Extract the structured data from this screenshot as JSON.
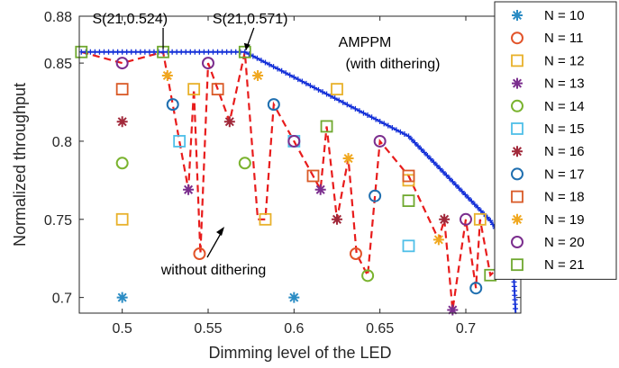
{
  "chart_data": {
    "type": "scatter",
    "xlabel": "Dimming level of the LED",
    "ylabel": "Normalized throughput",
    "xlim": [
      0.475,
      0.732
    ],
    "ylim": [
      0.69,
      0.88
    ],
    "xticks": [
      0.5,
      0.55,
      0.6,
      0.65,
      0.7
    ],
    "xtick_labels": [
      "0.5",
      "0.55",
      "0.6",
      "0.65",
      "0.7"
    ],
    "yticks": [
      0.7,
      0.75,
      0.8,
      0.85,
      0.88
    ],
    "ytick_labels": [
      "0.7",
      "0.75",
      "0.8",
      "0.85",
      "0.88"
    ],
    "grid": false,
    "legend_position": "right",
    "annotations": [
      {
        "text": "S(21,0.524)",
        "x": 0.524,
        "y": 0.859
      },
      {
        "text": "S(21,0.571)",
        "x": 0.571,
        "y": 0.859
      },
      {
        "text": "AMPPM",
        "x": 0.592,
        "y": 0.858
      },
      {
        "text": "(with dithering)",
        "x": 0.625,
        "y": 0.846
      },
      {
        "text": "without dithering",
        "x": 0.544,
        "y": 0.728
      }
    ],
    "series": [
      {
        "name": "N = 10",
        "marker": "asterisk",
        "color": "#2b8cc4",
        "points": [
          [
            0.5,
            0.7
          ],
          [
            0.6,
            0.7
          ]
        ]
      },
      {
        "name": "N = 11",
        "marker": "circle",
        "color": "#e2542a",
        "points": [
          [
            0.545,
            0.728
          ],
          [
            0.636,
            0.728
          ],
          [
            0.727,
            0.728
          ]
        ]
      },
      {
        "name": "N = 12",
        "marker": "square",
        "color": "#e8b12a",
        "points": [
          [
            0.5,
            0.75
          ],
          [
            0.5417,
            0.8333
          ],
          [
            0.5833,
            0.75
          ],
          [
            0.625,
            0.8333
          ],
          [
            0.6667,
            0.775
          ],
          [
            0.7083,
            0.75
          ]
        ]
      },
      {
        "name": "N = 13",
        "marker": "asterisk",
        "color": "#7b2e8e",
        "points": [
          [
            0.5385,
            0.769
          ],
          [
            0.6154,
            0.769
          ],
          [
            0.6923,
            0.692
          ]
        ]
      },
      {
        "name": "N = 14",
        "marker": "circle",
        "color": "#7ab32e",
        "points": [
          [
            0.5,
            0.786
          ],
          [
            0.5714,
            0.786
          ],
          [
            0.6429,
            0.714
          ]
        ]
      },
      {
        "name": "N = 15",
        "marker": "square",
        "color": "#4fbfe8",
        "points": [
          [
            0.5333,
            0.8
          ],
          [
            0.6,
            0.8
          ],
          [
            0.6667,
            0.733
          ]
        ]
      },
      {
        "name": "N = 16",
        "marker": "asterisk",
        "color": "#a1283a",
        "points": [
          [
            0.5,
            0.8125
          ],
          [
            0.5625,
            0.8125
          ],
          [
            0.625,
            0.75
          ],
          [
            0.6875,
            0.75
          ]
        ]
      },
      {
        "name": "N = 17",
        "marker": "circle",
        "color": "#1f6fb0",
        "points": [
          [
            0.5294,
            0.8235
          ],
          [
            0.5882,
            0.8235
          ],
          [
            0.6471,
            0.765
          ],
          [
            0.7059,
            0.706
          ]
        ]
      },
      {
        "name": "N = 18",
        "marker": "square",
        "color": "#d95a27",
        "points": [
          [
            0.5,
            0.8333
          ],
          [
            0.5556,
            0.8333
          ],
          [
            0.6111,
            0.7778
          ],
          [
            0.6667,
            0.7778
          ]
        ]
      },
      {
        "name": "N = 19",
        "marker": "asterisk",
        "color": "#f0a820",
        "points": [
          [
            0.5263,
            0.842
          ],
          [
            0.5789,
            0.842
          ],
          [
            0.6316,
            0.789
          ],
          [
            0.6842,
            0.737
          ]
        ]
      },
      {
        "name": "N = 20",
        "marker": "circle",
        "color": "#7b2e8e",
        "points": [
          [
            0.5,
            0.85
          ],
          [
            0.55,
            0.85
          ],
          [
            0.6,
            0.8
          ],
          [
            0.65,
            0.8
          ],
          [
            0.7,
            0.75
          ]
        ]
      },
      {
        "name": "N = 21",
        "marker": "square",
        "color": "#6fa82f",
        "points": [
          [
            0.4762,
            0.8571
          ],
          [
            0.5238,
            0.8571
          ],
          [
            0.5714,
            0.8571
          ],
          [
            0.619,
            0.8095
          ],
          [
            0.6667,
            0.7619
          ],
          [
            0.7143,
            0.7143
          ]
        ]
      }
    ],
    "line_series": [
      {
        "label": "AMPPM (with dithering)",
        "color": "#1430d8",
        "style": "solid",
        "marker": "plus",
        "x": [
          0.4762,
          0.5714,
          0.619,
          0.6667,
          0.7143,
          0.7273,
          0.729
        ],
        "y": [
          0.8571,
          0.8571,
          0.8302,
          0.8032,
          0.7492,
          0.727,
          0.69
        ]
      },
      {
        "label": "without dithering",
        "color": "#e81c1c",
        "style": "dashed",
        "x": [
          0.4762,
          0.5,
          0.5238,
          0.5263,
          0.5294,
          0.5333,
          0.5385,
          0.5417,
          0.5455,
          0.55,
          0.5556,
          0.5625,
          0.5714,
          0.5789,
          0.5833,
          0.5882,
          0.6,
          0.6111,
          0.6154,
          0.619,
          0.625,
          0.6316,
          0.6364,
          0.6429,
          0.65,
          0.6667,
          0.6842,
          0.6875,
          0.6923,
          0.7,
          0.7059,
          0.7083,
          0.7143,
          0.7273
        ],
        "y": [
          0.8571,
          0.85,
          0.8571,
          0.842,
          0.8235,
          0.8,
          0.769,
          0.8333,
          0.728,
          0.85,
          0.8333,
          0.8125,
          0.8571,
          0.75,
          0.75,
          0.8235,
          0.8,
          0.7778,
          0.769,
          0.8095,
          0.75,
          0.789,
          0.728,
          0.714,
          0.8,
          0.7778,
          0.737,
          0.75,
          0.692,
          0.75,
          0.706,
          0.75,
          0.7143,
          0.728
        ]
      }
    ]
  }
}
